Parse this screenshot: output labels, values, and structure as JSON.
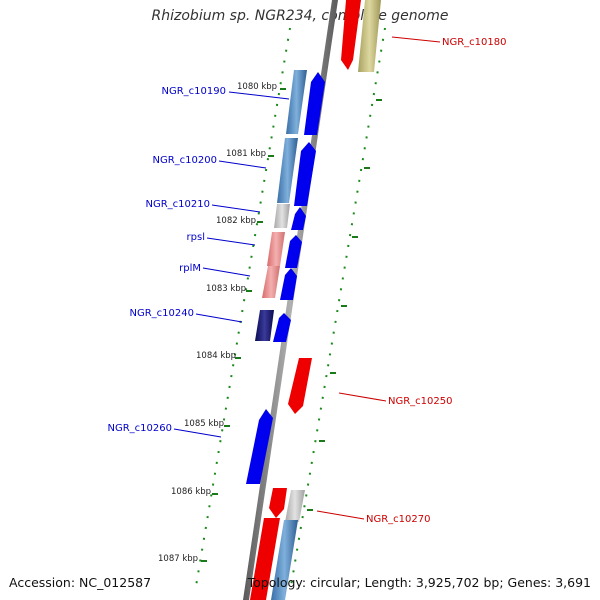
{
  "title": "Rhizobium sp. NGR234, complete genome",
  "footer": {
    "accession": "Accession: NC_012587",
    "summary": "Topology: circular; Length: 3,925,702 bp; Genes: 3,691"
  },
  "colors": {
    "backbone": "#8a8a8a",
    "kbp_tick": "#1a7a1a",
    "label_forward": "#0000cc",
    "label_reverse": "#cc0000"
  },
  "kbp_marks": [
    "1080 kbp",
    "1081 kbp",
    "1082 kbp",
    "1083 kbp",
    "1084 kbp",
    "1085 kbp",
    "1086 kbp",
    "1087 kbp"
  ],
  "genes": [
    {
      "id": "NGR_c10180",
      "label": "NGR_c10180",
      "strand": "-",
      "label_color": "#cc0000"
    },
    {
      "id": "NGR_c10190",
      "label": "NGR_c10190",
      "strand": "+",
      "label_color": "#0000cc"
    },
    {
      "id": "NGR_c10200",
      "label": "NGR_c10200",
      "strand": "+",
      "label_color": "#0000cc"
    },
    {
      "id": "NGR_c10210",
      "label": "NGR_c10210",
      "strand": "+",
      "label_color": "#0000cc"
    },
    {
      "id": "rpsl",
      "label": "rpsl",
      "strand": "+",
      "label_color": "#0000cc"
    },
    {
      "id": "rplM",
      "label": "rplM",
      "strand": "+",
      "label_color": "#0000cc"
    },
    {
      "id": "NGR_c10240",
      "label": "NGR_c10240",
      "strand": "+",
      "label_color": "#0000cc"
    },
    {
      "id": "NGR_c10250",
      "label": "NGR_c10250",
      "strand": "-",
      "label_color": "#cc0000"
    },
    {
      "id": "NGR_c10260",
      "label": "NGR_c10260",
      "strand": "+",
      "label_color": "#0000cc"
    },
    {
      "id": "NGR_c10270",
      "label": "NGR_c10270",
      "strand": "-",
      "label_color": "#cc0000"
    }
  ]
}
